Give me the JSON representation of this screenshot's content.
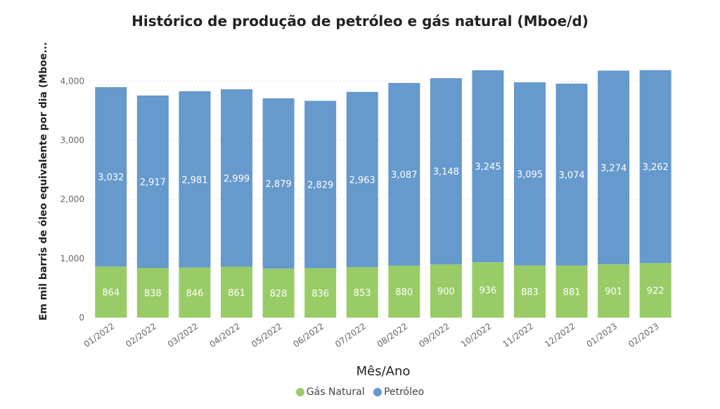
{
  "chart_data": {
    "type": "bar",
    "stacked": true,
    "title": "Histórico de produção de petróleo e gás natural (Mboe/d)",
    "xlabel": "Mês/Ano",
    "ylabel": "Em mil barris de óleo equivalente por dia (Mboe...",
    "ylim": [
      0,
      4300
    ],
    "yticks": [
      0,
      1000,
      2000,
      3000,
      4000
    ],
    "ytick_labels": [
      "0",
      "1,000",
      "2,000",
      "3,000",
      "4,000"
    ],
    "grid": true,
    "legend_position": "bottom",
    "categories": [
      "01/2022",
      "02/2022",
      "03/2022",
      "04/2022",
      "05/2022",
      "06/2022",
      "07/2022",
      "08/2022",
      "09/2022",
      "10/2022",
      "11/2022",
      "12/2022",
      "01/2023",
      "02/2023"
    ],
    "series": [
      {
        "name": "Gás Natural",
        "color": "#99cc66",
        "values": [
          864,
          838,
          846,
          861,
          828,
          836,
          853,
          880,
          900,
          936,
          883,
          881,
          901,
          922
        ],
        "labels": [
          "864",
          "838",
          "846",
          "861",
          "828",
          "836",
          "853",
          "880",
          "900",
          "936",
          "883",
          "881",
          "901",
          "922"
        ]
      },
      {
        "name": "Petróleo",
        "color": "#6699cc",
        "values": [
          3032,
          2917,
          2981,
          2999,
          2879,
          2829,
          2963,
          3087,
          3148,
          3245,
          3095,
          3074,
          3274,
          3262
        ],
        "labels": [
          "3,032",
          "2,917",
          "2,981",
          "2,999",
          "2,879",
          "2,829",
          "2,963",
          "3,087",
          "3,148",
          "3,245",
          "3,095",
          "3,074",
          "3,274",
          "3,262"
        ]
      }
    ]
  }
}
